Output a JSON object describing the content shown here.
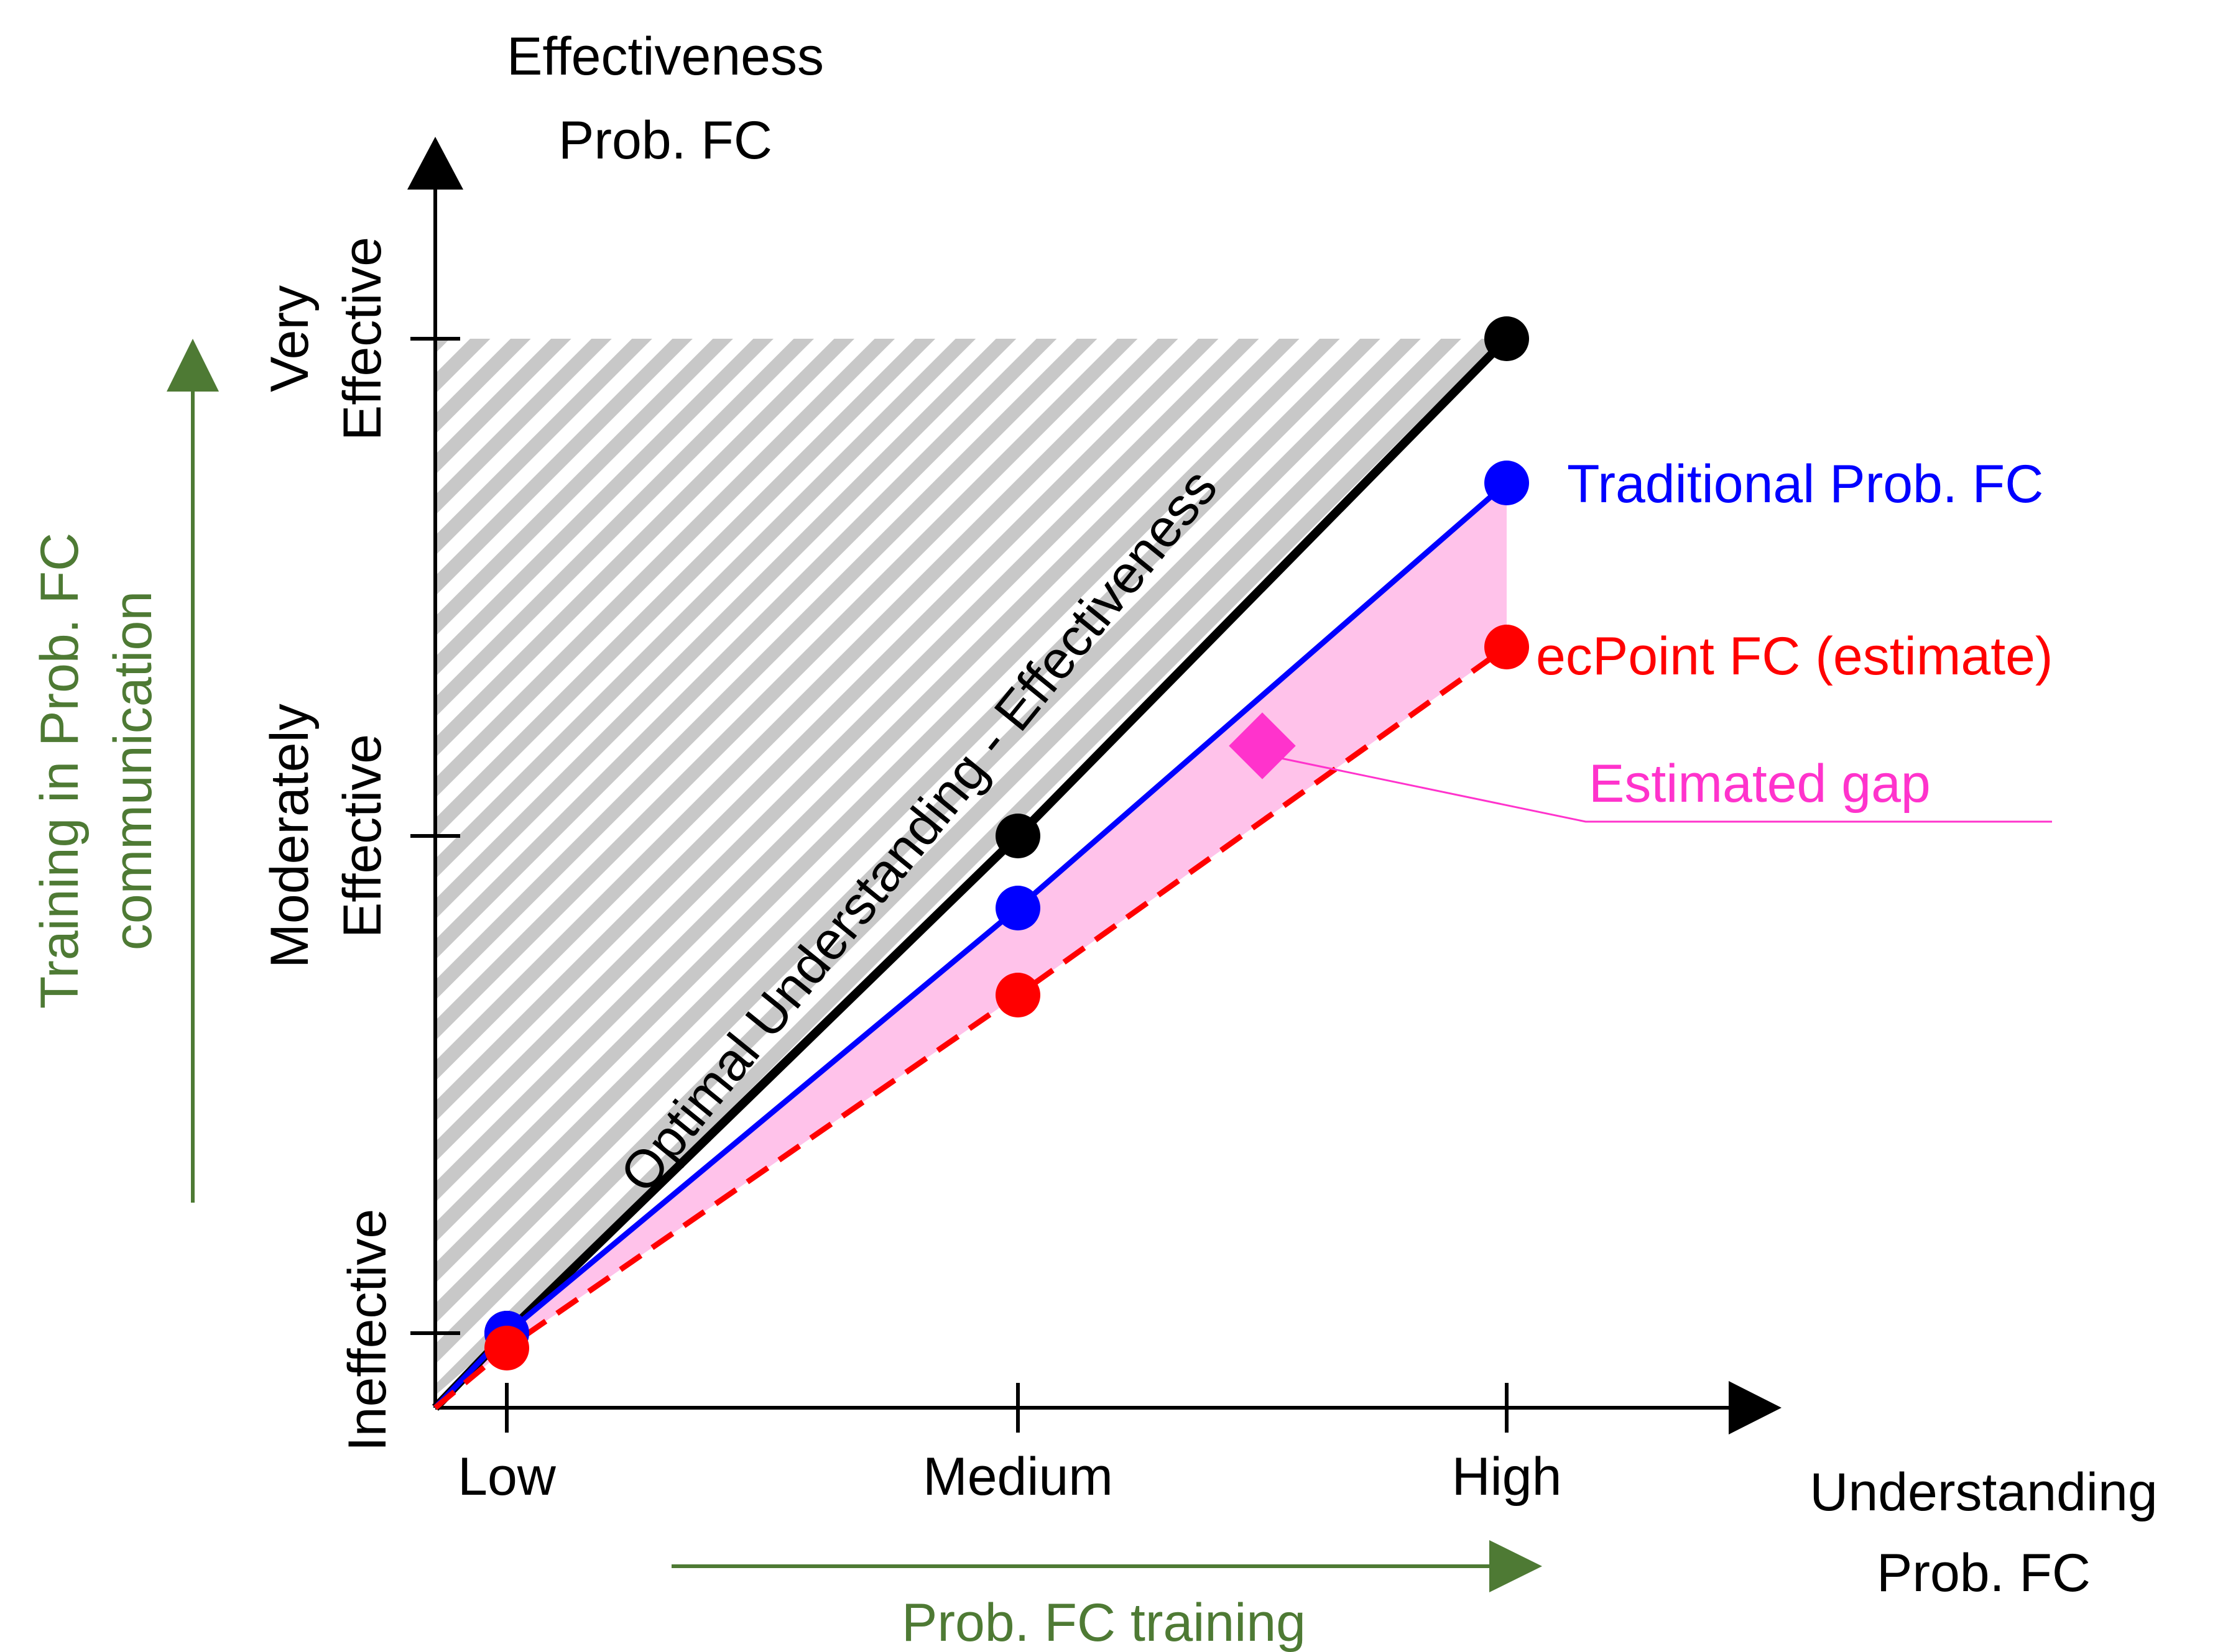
{
  "chart_data": {
    "type": "line",
    "title": "",
    "x_axis": {
      "label_line1": "Understanding",
      "label_line2": "Prob. FC",
      "categories": [
        "Low",
        "Medium",
        "High"
      ]
    },
    "y_axis": {
      "label_line1": "Effectiveness",
      "label_line2": "Prob. FC",
      "levels": [
        {
          "line1": "Ineffective",
          "line2": ""
        },
        {
          "line1": "Moderately",
          "line2": "Effective"
        },
        {
          "line1": "Very",
          "line2": "Effective"
        }
      ]
    },
    "series": [
      {
        "name": "Optimal Understanding - Effectiveness",
        "color": "#000000",
        "dash": false,
        "values": [
          0,
          1,
          2
        ]
      },
      {
        "name": "Traditional Prob. FC",
        "color": "#0000ff",
        "dash": false,
        "values": [
          0,
          0.855,
          1.71
        ]
      },
      {
        "name": "ecPoint FC (estimate)",
        "color": "#ff0000",
        "dash": true,
        "values": [
          -0.03,
          0.68,
          1.38
        ]
      }
    ],
    "gap_label": "Estimated gap",
    "gap_color": "#ff33cc",
    "gap_fill": "#ffc2ea",
    "training_colour": "#4e7a34",
    "x_training_label": "Prob. FC training",
    "y_training_label_line1": "Training in Prob. FC",
    "y_training_label_line2": "communication"
  }
}
